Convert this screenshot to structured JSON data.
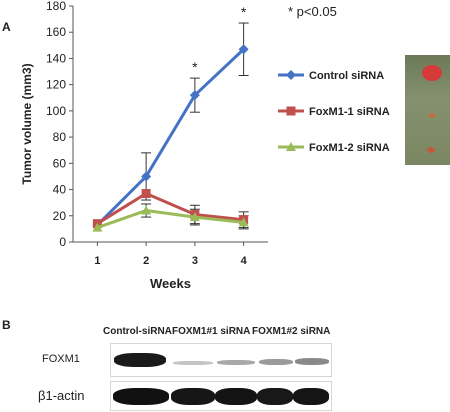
{
  "panel_a_label": "A",
  "panel_b_label": "B",
  "significance_note": "* p<0.05",
  "chart_data": {
    "type": "line",
    "xlabel": "Weeks",
    "ylabel": "Tumor volume (mm3)",
    "x": [
      1,
      2,
      3,
      4
    ],
    "ylim": [
      0,
      180
    ],
    "yticks": [
      0,
      20,
      40,
      60,
      80,
      100,
      120,
      140,
      160,
      180
    ],
    "grid": false,
    "legend_position": "right",
    "significance_markers": [
      {
        "x": 3,
        "label": "*"
      },
      {
        "x": 4,
        "label": "*"
      }
    ],
    "series": [
      {
        "name": "Control siRNA",
        "color": "#4472c4",
        "marker": "diamond",
        "values": [
          13,
          50,
          112,
          147
        ],
        "errors": [
          0,
          18,
          13,
          20
        ]
      },
      {
        "name": "FoxM1-1 siRNA",
        "color": "#c0504d",
        "marker": "square",
        "values": [
          14,
          37,
          21,
          17
        ],
        "errors": [
          0,
          0,
          7,
          6
        ]
      },
      {
        "name": "FoxM1-2 siRNA",
        "color": "#9bbb59",
        "marker": "triangle",
        "values": [
          11,
          24,
          19,
          15
        ],
        "errors": [
          0,
          5,
          6,
          5
        ]
      }
    ]
  },
  "western_blot": {
    "columns": [
      "Control-siRNA",
      "FOXM1#1 siRNA",
      "FOXM1#2 siRNA"
    ],
    "rows": [
      {
        "label": "FOXM1"
      },
      {
        "label": "β1-actin"
      }
    ]
  }
}
